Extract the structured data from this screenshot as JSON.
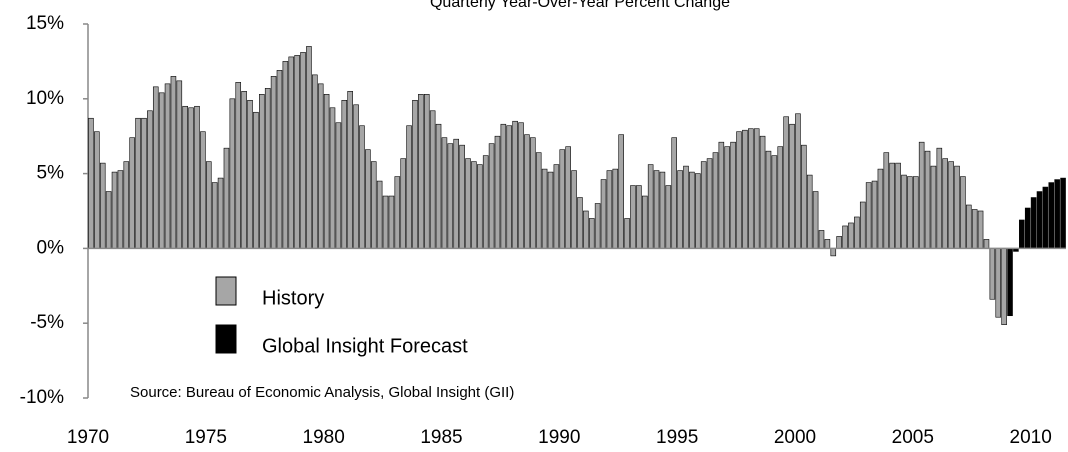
{
  "chart_data": {
    "type": "bar",
    "title": "Quarterly Year-Over-Year Percent Change",
    "annotation": "Source: Bureau of Economic Analysis, Global Insight (GII)",
    "categories": [
      "1970",
      null,
      null,
      null,
      null,
      null,
      null,
      null,
      null,
      null,
      null,
      null,
      null,
      null,
      null,
      null,
      null,
      null,
      null,
      null,
      "1975",
      null,
      null,
      null,
      null,
      null,
      null,
      null,
      null,
      null,
      null,
      null,
      null,
      null,
      null,
      null,
      null,
      null,
      null,
      null,
      "1980",
      null,
      null,
      null,
      null,
      null,
      null,
      null,
      null,
      null,
      null,
      null,
      null,
      null,
      null,
      null,
      null,
      null,
      null,
      null,
      "1985",
      null,
      null,
      null,
      null,
      null,
      null,
      null,
      null,
      null,
      null,
      null,
      null,
      null,
      null,
      null,
      null,
      null,
      null,
      null,
      "1990",
      null,
      null,
      null,
      null,
      null,
      null,
      null,
      null,
      null,
      null,
      null,
      null,
      null,
      null,
      null,
      null,
      null,
      null,
      null,
      "1995",
      null,
      null,
      null,
      null,
      null,
      null,
      null,
      null,
      null,
      null,
      null,
      null,
      null,
      null,
      null,
      null,
      null,
      null,
      null,
      "2000",
      null,
      null,
      null,
      null,
      null,
      null,
      null,
      null,
      null,
      null,
      null,
      null,
      null,
      null,
      null,
      null,
      null,
      null,
      null,
      "2005",
      null,
      null,
      null,
      null,
      null,
      null,
      null,
      null,
      null,
      null,
      null,
      null,
      null,
      null,
      null,
      null,
      null,
      null,
      null,
      "2010",
      null,
      null,
      null,
      null,
      null
    ],
    "series": [
      {
        "name": "History",
        "color": "#a6a6a6",
        "values": [
          8.7,
          7.8,
          5.7,
          3.8,
          5.1,
          5.2,
          5.8,
          7.4,
          8.7,
          8.7,
          9.2,
          10.8,
          10.4,
          11.0,
          11.5,
          11.2,
          9.5,
          9.4,
          9.5,
          7.8,
          5.8,
          4.4,
          4.7,
          6.7,
          10.0,
          11.1,
          10.5,
          9.9,
          9.1,
          10.3,
          10.7,
          11.5,
          11.9,
          12.5,
          12.8,
          12.9,
          13.1,
          13.5,
          11.6,
          11.0,
          10.3,
          9.4,
          8.4,
          9.9,
          10.5,
          9.6,
          8.2,
          6.6,
          5.8,
          4.5,
          3.5,
          3.5,
          4.8,
          6.0,
          8.2,
          9.9,
          10.3,
          10.3,
          9.2,
          8.3,
          7.4,
          7.0,
          7.3,
          6.9,
          6.0,
          5.8,
          5.6,
          6.2,
          7.0,
          7.5,
          8.3,
          8.2,
          8.5,
          8.4,
          7.6,
          7.4,
          6.4,
          5.3,
          5.1,
          5.6,
          6.6,
          6.8,
          5.2,
          3.4,
          2.5,
          2.0,
          3.0,
          4.6,
          5.2,
          5.3,
          7.6,
          2.0,
          4.2,
          4.2,
          3.5,
          5.6,
          5.2,
          5.1,
          4.2,
          7.4,
          5.2,
          5.5,
          5.1,
          5.0,
          5.8,
          6.0,
          6.4,
          7.1,
          6.8,
          7.1,
          7.8,
          7.9,
          8.0,
          8.0,
          7.5,
          6.5,
          6.2,
          6.8,
          8.8,
          8.3,
          9.0,
          6.9,
          4.9,
          3.8,
          1.2,
          0.6,
          -0.5,
          0.8,
          1.5,
          1.7,
          2.1,
          3.1,
          4.4,
          4.5,
          5.3,
          6.4,
          5.7,
          5.7,
          4.9,
          4.8,
          4.8,
          7.1,
          6.5,
          5.5,
          6.7,
          6.0,
          5.8,
          5.5,
          4.8,
          2.9,
          2.6,
          2.5,
          0.6,
          -3.4,
          -4.6,
          -5.1,
          null,
          null,
          null,
          null,
          null,
          null,
          null,
          null,
          null,
          null
        ]
      },
      {
        "name": "Global Insight Forecast",
        "color": "#000000",
        "values": [
          null,
          null,
          null,
          null,
          null,
          null,
          null,
          null,
          null,
          null,
          null,
          null,
          null,
          null,
          null,
          null,
          null,
          null,
          null,
          null,
          null,
          null,
          null,
          null,
          null,
          null,
          null,
          null,
          null,
          null,
          null,
          null,
          null,
          null,
          null,
          null,
          null,
          null,
          null,
          null,
          null,
          null,
          null,
          null,
          null,
          null,
          null,
          null,
          null,
          null,
          null,
          null,
          null,
          null,
          null,
          null,
          null,
          null,
          null,
          null,
          null,
          null,
          null,
          null,
          null,
          null,
          null,
          null,
          null,
          null,
          null,
          null,
          null,
          null,
          null,
          null,
          null,
          null,
          null,
          null,
          null,
          null,
          null,
          null,
          null,
          null,
          null,
          null,
          null,
          null,
          null,
          null,
          null,
          null,
          null,
          null,
          null,
          null,
          null,
          null,
          null,
          null,
          null,
          null,
          null,
          null,
          null,
          null,
          null,
          null,
          null,
          null,
          null,
          null,
          null,
          null,
          null,
          null,
          null,
          null,
          null,
          null,
          null,
          null,
          null,
          null,
          null,
          null,
          null,
          null,
          null,
          null,
          null,
          null,
          null,
          null,
          null,
          null,
          null,
          null,
          null,
          null,
          null,
          null,
          null,
          null,
          null,
          null,
          null,
          null,
          null,
          null,
          null,
          null,
          null,
          null,
          -4.5,
          -0.2,
          1.9,
          2.7,
          3.4,
          3.8,
          4.1,
          4.4,
          4.6,
          4.7
        ]
      }
    ],
    "ylim": [
      -10,
      15
    ],
    "yticks": [
      {
        "value": -10,
        "label": "-10%"
      },
      {
        "value": -5,
        "label": "-5%"
      },
      {
        "value": 0,
        "label": "0%"
      },
      {
        "value": 5,
        "label": "5%"
      },
      {
        "value": 10,
        "label": "10%"
      },
      {
        "value": 15,
        "label": "15%"
      }
    ],
    "grid": false
  }
}
